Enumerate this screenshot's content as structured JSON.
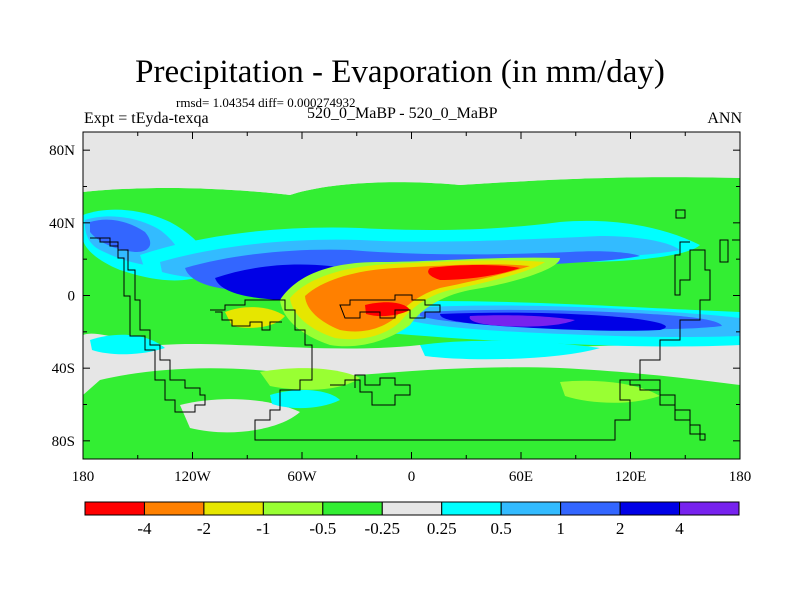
{
  "header": {
    "title": "Precipitation - Evaporation (in mm/day)",
    "stats": "rmsd= 1.04354 diff= 0.000274932",
    "expt": "Expt = tEyda-texqa",
    "case": "520_0_MaBP - 520_0_MaBP",
    "season": "ANN"
  },
  "colors": {
    "c0": "#ff0000",
    "c1": "#ff8000",
    "c2": "#e6e600",
    "c3": "#99ff33",
    "c4": "#33ee33",
    "c5": "#e6e6e6",
    "c6": "#00ffff",
    "c7": "#33bbff",
    "c8": "#3366ff",
    "c9": "#0000e6",
    "c10": "#7722ee",
    "land_outline": "#000000",
    "background": "#e6e6e6"
  },
  "chart_data": {
    "type": "heatmap",
    "title": "Precipitation - Evaporation (in mm/day)",
    "x_range": [
      -180,
      180
    ],
    "y_range": [
      -90,
      90
    ],
    "x_ticks": [
      "180",
      "120W",
      "60W",
      "0",
      "60E",
      "120E",
      "180"
    ],
    "x_tick_values": [
      -180,
      -120,
      -60,
      0,
      60,
      120,
      180
    ],
    "y_ticks": [
      "80N",
      "40N",
      "0",
      "40S",
      "80S"
    ],
    "y_tick_values": [
      80,
      40,
      0,
      -40,
      -80
    ],
    "colorbar": {
      "levels": [
        "-4",
        "-2",
        "-1",
        "-0.5",
        "-0.25",
        "0.25",
        "0.5",
        "1",
        "2",
        "4"
      ],
      "colors": [
        "#ff0000",
        "#ff8000",
        "#e6e600",
        "#99ff33",
        "#33ee33",
        "#e6e6e6",
        "#00ffff",
        "#33bbff",
        "#3366ff",
        "#0000e6",
        "#7722ee"
      ]
    }
  }
}
